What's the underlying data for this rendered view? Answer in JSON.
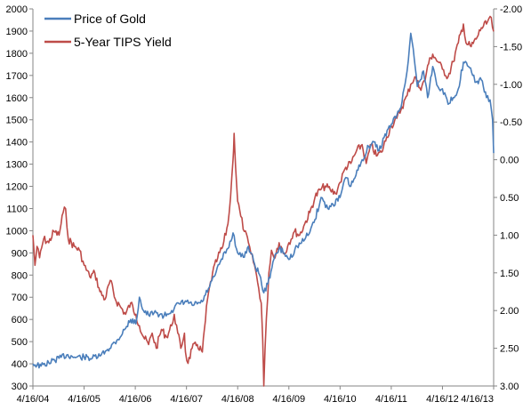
{
  "chart_data": {
    "type": "line",
    "title": "",
    "xlabel": "",
    "ylabel": "",
    "x_ticks": [
      "4/16/04",
      "4/16/05",
      "4/16/06",
      "4/16/07",
      "4/16/08",
      "4/16/09",
      "4/16/10",
      "4/16/11",
      "4/16/12",
      "4/16/13"
    ],
    "y_left": {
      "min": 300,
      "max": 2000,
      "ticks": [
        300,
        400,
        500,
        600,
        700,
        800,
        900,
        1000,
        1100,
        1200,
        1300,
        1400,
        1500,
        1600,
        1700,
        1800,
        1900,
        2000
      ]
    },
    "y_right": {
      "min": -2.0,
      "max": 3.0,
      "inverted": true,
      "ticks": [
        "-2.00",
        "-1.50",
        "-1.00",
        "-0.50",
        "0.00",
        "0.50",
        "1.00",
        "1.50",
        "2.00",
        "2.50",
        "3.00"
      ]
    },
    "grid": false,
    "legend": "top-left",
    "series": [
      {
        "name": "Price of Gold",
        "axis": "left",
        "color": "#4a7ebb",
        "points": [
          [
            2004.29,
            400
          ],
          [
            2004.45,
            390
          ],
          [
            2004.6,
            405
          ],
          [
            2004.8,
            425
          ],
          [
            2004.95,
            440
          ],
          [
            2005.1,
            430
          ],
          [
            2005.29,
            430
          ],
          [
            2005.45,
            425
          ],
          [
            2005.6,
            435
          ],
          [
            2005.75,
            465
          ],
          [
            2005.95,
            510
          ],
          [
            2006.1,
            560
          ],
          [
            2006.2,
            600
          ],
          [
            2006.3,
            580
          ],
          [
            2006.37,
            700
          ],
          [
            2006.45,
            640
          ],
          [
            2006.55,
            620
          ],
          [
            2006.7,
            630
          ],
          [
            2006.85,
            615
          ],
          [
            2007.0,
            640
          ],
          [
            2007.15,
            670
          ],
          [
            2007.29,
            680
          ],
          [
            2007.4,
            665
          ],
          [
            2007.5,
            670
          ],
          [
            2007.6,
            680
          ],
          [
            2007.72,
            740
          ],
          [
            2007.85,
            800
          ],
          [
            2007.95,
            860
          ],
          [
            2008.1,
            920
          ],
          [
            2008.2,
            990
          ],
          [
            2008.29,
            900
          ],
          [
            2008.4,
            880
          ],
          [
            2008.5,
            930
          ],
          [
            2008.62,
            850
          ],
          [
            2008.72,
            800
          ],
          [
            2008.8,
            720
          ],
          [
            2008.88,
            760
          ],
          [
            2008.98,
            860
          ],
          [
            2009.1,
            920
          ],
          [
            2009.2,
            900
          ],
          [
            2009.29,
            870
          ],
          [
            2009.45,
            930
          ],
          [
            2009.6,
            960
          ],
          [
            2009.72,
            1010
          ],
          [
            2009.8,
            1050
          ],
          [
            2009.92,
            1150
          ],
          [
            2010.05,
            1100
          ],
          [
            2010.15,
            1120
          ],
          [
            2010.29,
            1150
          ],
          [
            2010.4,
            1240
          ],
          [
            2010.5,
            1200
          ],
          [
            2010.6,
            1250
          ],
          [
            2010.72,
            1320
          ],
          [
            2010.85,
            1380
          ],
          [
            2010.95,
            1400
          ],
          [
            2011.05,
            1360
          ],
          [
            2011.15,
            1420
          ],
          [
            2011.29,
            1480
          ],
          [
            2011.4,
            1520
          ],
          [
            2011.5,
            1580
          ],
          [
            2011.6,
            1720
          ],
          [
            2011.67,
            1890
          ],
          [
            2011.72,
            1820
          ],
          [
            2011.8,
            1650
          ],
          [
            2011.92,
            1720
          ],
          [
            2012.0,
            1600
          ],
          [
            2012.1,
            1740
          ],
          [
            2012.2,
            1650
          ],
          [
            2012.29,
            1640
          ],
          [
            2012.4,
            1570
          ],
          [
            2012.5,
            1600
          ],
          [
            2012.6,
            1640
          ],
          [
            2012.7,
            1760
          ],
          [
            2012.8,
            1740
          ],
          [
            2012.88,
            1700
          ],
          [
            2012.95,
            1670
          ],
          [
            2013.05,
            1680
          ],
          [
            2013.15,
            1600
          ],
          [
            2013.22,
            1590
          ],
          [
            2013.27,
            1500
          ],
          [
            2013.29,
            1350
          ]
        ]
      },
      {
        "name": "5-Year TIPS Yield",
        "axis": "right",
        "color": "#be4b48",
        "points": [
          [
            2004.29,
            1.0
          ],
          [
            2004.33,
            1.4
          ],
          [
            2004.37,
            1.15
          ],
          [
            2004.42,
            1.3
          ],
          [
            2004.5,
            1.05
          ],
          [
            2004.6,
            1.1
          ],
          [
            2004.7,
            0.95
          ],
          [
            2004.8,
            1.0
          ],
          [
            2004.88,
            0.7
          ],
          [
            2004.93,
            0.65
          ],
          [
            2004.98,
            1.05
          ],
          [
            2005.1,
            1.15
          ],
          [
            2005.2,
            1.2
          ],
          [
            2005.29,
            1.4
          ],
          [
            2005.4,
            1.55
          ],
          [
            2005.5,
            1.5
          ],
          [
            2005.6,
            1.75
          ],
          [
            2005.7,
            1.85
          ],
          [
            2005.8,
            1.6
          ],
          [
            2005.9,
            1.85
          ],
          [
            2006.0,
            1.95
          ],
          [
            2006.1,
            2.05
          ],
          [
            2006.2,
            1.9
          ],
          [
            2006.3,
            2.05
          ],
          [
            2006.37,
            2.2
          ],
          [
            2006.45,
            2.35
          ],
          [
            2006.55,
            2.45
          ],
          [
            2006.62,
            2.3
          ],
          [
            2006.7,
            2.5
          ],
          [
            2006.8,
            2.25
          ],
          [
            2006.9,
            2.35
          ],
          [
            2007.0,
            2.2
          ],
          [
            2007.05,
            2.05
          ],
          [
            2007.12,
            2.3
          ],
          [
            2007.18,
            2.5
          ],
          [
            2007.25,
            2.3
          ],
          [
            2007.27,
            2.55
          ],
          [
            2007.32,
            2.7
          ],
          [
            2007.4,
            2.5
          ],
          [
            2007.5,
            2.45
          ],
          [
            2007.6,
            2.55
          ],
          [
            2007.7,
            1.85
          ],
          [
            2007.8,
            1.5
          ],
          [
            2007.9,
            1.3
          ],
          [
            2008.0,
            1.15
          ],
          [
            2008.1,
            0.85
          ],
          [
            2008.15,
            0.5
          ],
          [
            2008.2,
            0.0
          ],
          [
            2008.22,
            -0.35
          ],
          [
            2008.25,
            0.1
          ],
          [
            2008.29,
            0.55
          ],
          [
            2008.35,
            0.75
          ],
          [
            2008.42,
            0.95
          ],
          [
            2008.5,
            1.1
          ],
          [
            2008.55,
            1.25
          ],
          [
            2008.62,
            1.4
          ],
          [
            2008.7,
            1.7
          ],
          [
            2008.75,
            1.9
          ],
          [
            2008.78,
            2.4
          ],
          [
            2008.8,
            3.0
          ],
          [
            2008.85,
            2.1
          ],
          [
            2008.9,
            1.5
          ],
          [
            2008.95,
            1.2
          ],
          [
            2009.0,
            1.3
          ],
          [
            2009.1,
            1.1
          ],
          [
            2009.2,
            1.25
          ],
          [
            2009.29,
            1.1
          ],
          [
            2009.4,
            0.95
          ],
          [
            2009.5,
            1.0
          ],
          [
            2009.6,
            0.85
          ],
          [
            2009.7,
            0.7
          ],
          [
            2009.8,
            0.5
          ],
          [
            2009.9,
            0.4
          ],
          [
            2010.0,
            0.35
          ],
          [
            2010.1,
            0.4
          ],
          [
            2010.2,
            0.45
          ],
          [
            2010.29,
            0.3
          ],
          [
            2010.4,
            0.1
          ],
          [
            2010.5,
            0.05
          ],
          [
            2010.6,
            -0.1
          ],
          [
            2010.72,
            -0.2
          ],
          [
            2010.8,
            0.05
          ],
          [
            2010.9,
            -0.2
          ],
          [
            2011.0,
            -0.05
          ],
          [
            2011.1,
            -0.1
          ],
          [
            2011.2,
            -0.3
          ],
          [
            2011.29,
            -0.45
          ],
          [
            2011.4,
            -0.55
          ],
          [
            2011.5,
            -0.7
          ],
          [
            2011.6,
            -0.85
          ],
          [
            2011.67,
            -1.0
          ],
          [
            2011.75,
            -1.1
          ],
          [
            2011.85,
            -0.95
          ],
          [
            2011.95,
            -1.05
          ],
          [
            2012.0,
            -1.25
          ],
          [
            2012.1,
            -1.4
          ],
          [
            2012.2,
            -1.3
          ],
          [
            2012.29,
            -1.2
          ],
          [
            2012.4,
            -1.1
          ],
          [
            2012.5,
            -1.3
          ],
          [
            2012.6,
            -1.55
          ],
          [
            2012.7,
            -1.8
          ],
          [
            2012.75,
            -1.55
          ],
          [
            2012.85,
            -1.5
          ],
          [
            2012.95,
            -1.6
          ],
          [
            2013.05,
            -1.75
          ],
          [
            2013.15,
            -1.8
          ],
          [
            2013.22,
            -1.9
          ],
          [
            2013.29,
            -1.7
          ]
        ]
      }
    ]
  }
}
